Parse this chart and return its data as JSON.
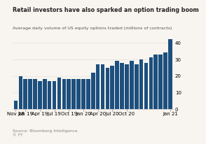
{
  "title": "Retail investors have also sparked an option trading boom",
  "subtitle": "Average daily volume of US equity options traded (millions of contracts)",
  "source": "Source: Bloomberg Intelligence\n© FT",
  "bar_color": "#1c4f7e",
  "background_color": "#f8f4ef",
  "values": [
    5,
    20,
    18,
    18,
    18,
    17,
    18,
    17,
    17,
    19,
    18,
    18,
    18,
    18,
    18,
    18,
    22,
    27,
    27,
    25,
    26,
    29,
    28,
    27,
    29,
    27,
    30,
    28,
    31,
    33,
    33,
    34,
    42
  ],
  "x_tick_labels": [
    "Nov 18",
    "Jan 19",
    "Apr 19",
    "Jul 19",
    "Oct 19",
    "Jan 20",
    "Apr 20",
    "Jul 20",
    "Oct 20",
    "Jan 21"
  ],
  "x_tick_positions": [
    0,
    2,
    5,
    8,
    11,
    14,
    17,
    20,
    23,
    32
  ],
  "ylim": [
    0,
    44
  ],
  "yticks": [
    0,
    10,
    20,
    30,
    40
  ],
  "tick_fontsize": 5,
  "title_fontsize": 5.8,
  "subtitle_fontsize": 4.5,
  "source_fontsize": 4.2
}
